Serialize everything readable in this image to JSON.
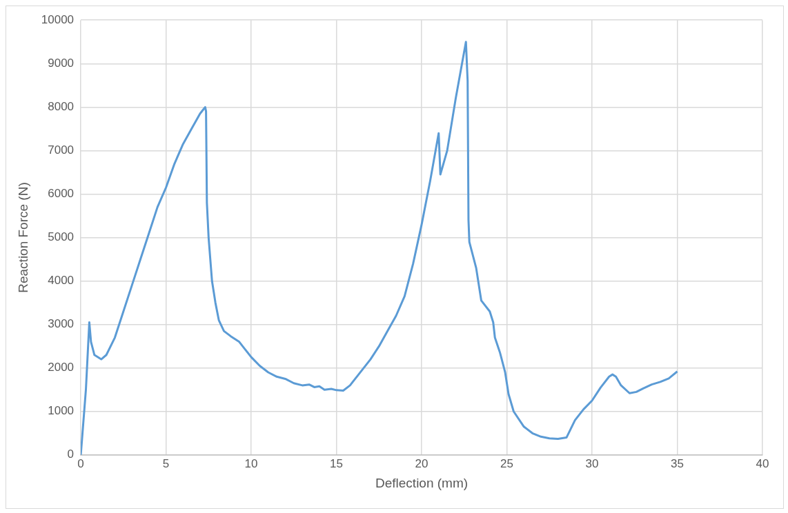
{
  "chart_data": {
    "type": "line",
    "xlabel": "Deflection (mm)",
    "ylabel": "Reaction Force (N)",
    "xlim": [
      0,
      40
    ],
    "xticks": [
      0,
      5,
      10,
      15,
      20,
      25,
      30,
      35,
      40
    ],
    "ylim": [
      0,
      10000
    ],
    "yticks": [
      0,
      1000,
      2000,
      3000,
      4000,
      5000,
      6000,
      7000,
      8000,
      9000,
      10000
    ],
    "grid": true,
    "legend": false,
    "marker": "none",
    "line_style": "solid",
    "series": [
      {
        "color": "#5b9bd5",
        "x": [
          0,
          0.3,
          0.5,
          0.6,
          0.8,
          1.2,
          1.5,
          2,
          2.5,
          3,
          3.5,
          4,
          4.5,
          5,
          5.5,
          6,
          6.5,
          7,
          7.2,
          7.3,
          7.35,
          7.4,
          7.5,
          7.7,
          7.9,
          8.1,
          8.4,
          8.8,
          9.3,
          9.6,
          10,
          10.5,
          11,
          11.5,
          12,
          12.5,
          13,
          13.4,
          13.7,
          14,
          14.3,
          14.7,
          15,
          15.4,
          15.8,
          16.3,
          17,
          17.5,
          18,
          18.5,
          19,
          19.5,
          20,
          20.5,
          21,
          21.1,
          21.5,
          22,
          22.6,
          22.7,
          22.75,
          22.8,
          23.2,
          23.5,
          24,
          24.2,
          24.3,
          24.6,
          24.9,
          25.1,
          25.4,
          26,
          26.5,
          27,
          27.5,
          28,
          28.5,
          29,
          29.5,
          30,
          30.5,
          31,
          31.2,
          31.4,
          31.7,
          32.2,
          32.6,
          33,
          33.5,
          34,
          34.5,
          35
        ],
        "values": [
          0,
          1500,
          3050,
          2600,
          2300,
          2200,
          2300,
          2700,
          3300,
          3900,
          4500,
          5100,
          5700,
          6150,
          6700,
          7150,
          7500,
          7850,
          7950,
          8000,
          7900,
          5800,
          5000,
          4000,
          3500,
          3100,
          2850,
          2730,
          2600,
          2450,
          2250,
          2050,
          1900,
          1800,
          1750,
          1650,
          1600,
          1620,
          1560,
          1580,
          1500,
          1520,
          1490,
          1480,
          1600,
          1850,
          2200,
          2500,
          2850,
          3200,
          3650,
          4400,
          5300,
          6300,
          7400,
          6450,
          7000,
          8200,
          9500,
          8600,
          5400,
          4900,
          4300,
          3550,
          3300,
          3050,
          2700,
          2350,
          1900,
          1400,
          1000,
          650,
          500,
          420,
          380,
          370,
          400,
          800,
          1050,
          1250,
          1550,
          1800,
          1850,
          1800,
          1600,
          1420,
          1450,
          1530,
          1620,
          1680,
          1760,
          1920
        ]
      }
    ]
  }
}
